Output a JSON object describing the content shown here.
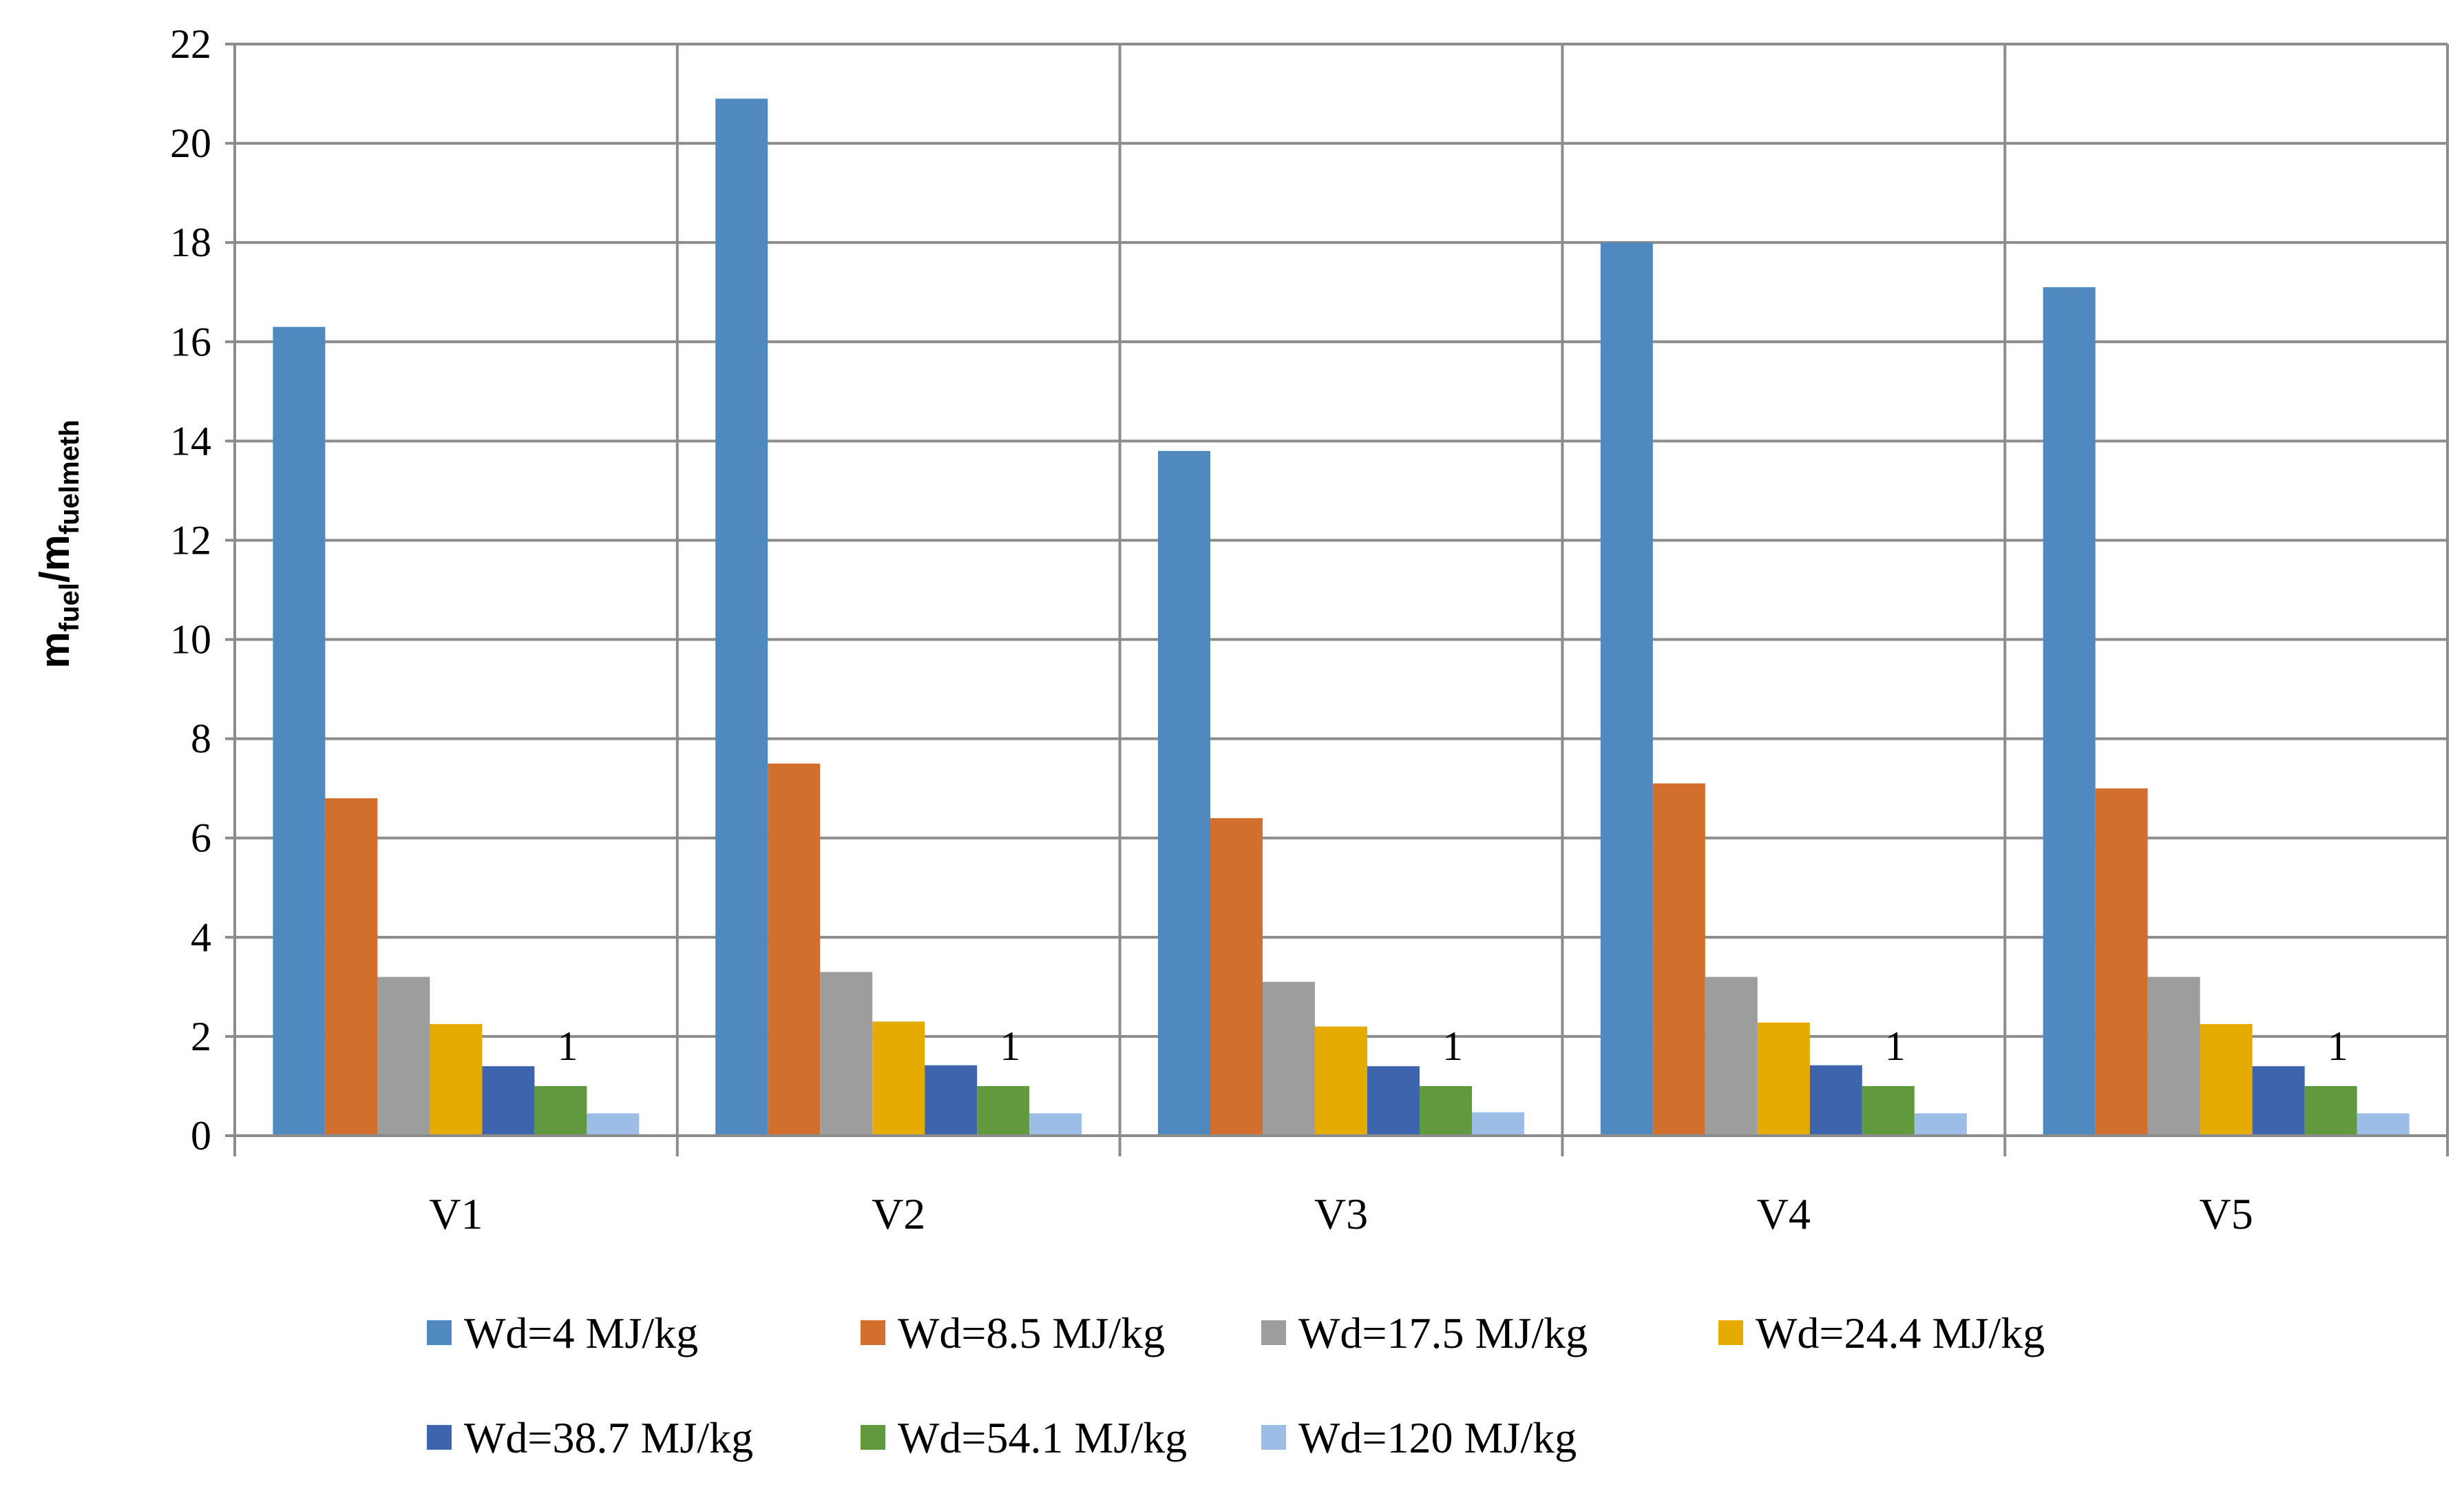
{
  "chart_data": {
    "type": "bar",
    "title": "",
    "xlabel": "",
    "ylabel": {
      "main": "m",
      "sub1": "fuel",
      "sep": "/m",
      "sub2": "fuelmeth"
    },
    "ylim": [
      0,
      22
    ],
    "yticks": [
      "0",
      "2",
      "4",
      "6",
      "8",
      "10",
      "12",
      "14",
      "16",
      "18",
      "20",
      "22"
    ],
    "ytick_values": [
      0,
      2,
      4,
      6,
      8,
      10,
      12,
      14,
      16,
      18,
      20,
      22
    ],
    "grid": true,
    "legend_position": "bottom",
    "categories": [
      "V1",
      "V2",
      "V3",
      "V4",
      "V5"
    ],
    "series": [
      {
        "name": "Wd=4 MJ/kg",
        "color": "#4f89c0",
        "values": [
          16.3,
          20.9,
          13.8,
          18.0,
          17.1
        ]
      },
      {
        "name": "Wd=8.5 MJ/kg",
        "color": "#d26f2d",
        "values": [
          6.8,
          7.5,
          6.4,
          7.1,
          7.0
        ]
      },
      {
        "name": "Wd=17.5 MJ/kg",
        "color": "#9d9d9d",
        "values": [
          3.2,
          3.3,
          3.1,
          3.2,
          3.2
        ]
      },
      {
        "name": "Wd=24.4 MJ/kg",
        "color": "#e5ab00",
        "values": [
          2.25,
          2.3,
          2.2,
          2.28,
          2.25
        ]
      },
      {
        "name": "Wd=38.7 MJ/kg",
        "color": "#3e64ad",
        "values": [
          1.4,
          1.42,
          1.4,
          1.42,
          1.4
        ]
      },
      {
        "name": "Wd=54.1 MJ/kg",
        "color": "#61993f",
        "values": [
          1,
          1,
          1,
          1,
          1
        ]
      },
      {
        "name": "Wd=120 MJ/kg",
        "color": "#9bbde6",
        "values": [
          0.45,
          0.45,
          0.47,
          0.45,
          0.45
        ]
      }
    ],
    "data_labels": [
      {
        "series": 5,
        "category": 0,
        "text": "1"
      },
      {
        "series": 5,
        "category": 1,
        "text": "1"
      },
      {
        "series": 5,
        "category": 2,
        "text": "1"
      },
      {
        "series": 5,
        "category": 3,
        "text": "1"
      },
      {
        "series": 5,
        "category": 4,
        "text": "1"
      }
    ]
  }
}
